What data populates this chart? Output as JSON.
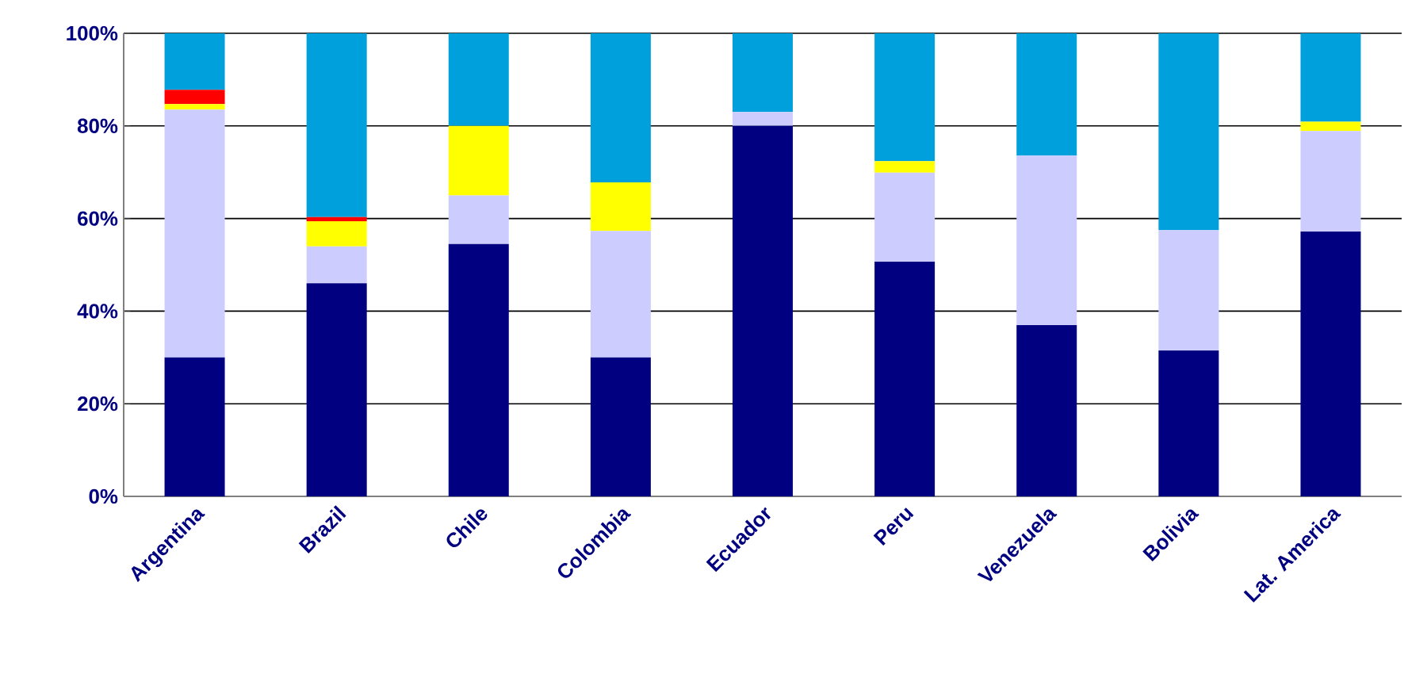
{
  "chart_data": {
    "type": "bar",
    "stacked": true,
    "categories": [
      "Argentina",
      "Brazil",
      "Chile",
      "Colombia",
      "Ecuador",
      "Peru",
      "Venezuela",
      "Bolivia",
      "Lat. America"
    ],
    "series": [
      {
        "color": "#000080",
        "values": [
          30,
          46,
          54.5,
          30,
          80,
          50.7,
          37,
          31.5,
          57.2
        ]
      },
      {
        "color": "#ccccff",
        "values": [
          53.5,
          8,
          10.5,
          27.3,
          3,
          19.2,
          36.6,
          26,
          21.7
        ]
      },
      {
        "color": "#ffff00",
        "values": [
          1.2,
          5.4,
          15,
          10.5,
          0,
          2.5,
          0,
          0,
          2
        ]
      },
      {
        "color": "#ff0000",
        "values": [
          3.1,
          0.9,
          0,
          0,
          0,
          0,
          0,
          0,
          0
        ]
      },
      {
        "color": "#00a0dc",
        "values": [
          12.2,
          39.7,
          20,
          32.2,
          17,
          27.6,
          26.4,
          42.5,
          19.1
        ]
      }
    ],
    "ylim": [
      0,
      100
    ],
    "yticks": [
      {
        "value": 0,
        "label": "0%"
      },
      {
        "value": 20,
        "label": "20%"
      },
      {
        "value": 40,
        "label": "40%"
      },
      {
        "value": 60,
        "label": "60%"
      },
      {
        "value": 80,
        "label": "80%"
      },
      {
        "value": 100,
        "label": "100%"
      }
    ],
    "grid": "y"
  }
}
